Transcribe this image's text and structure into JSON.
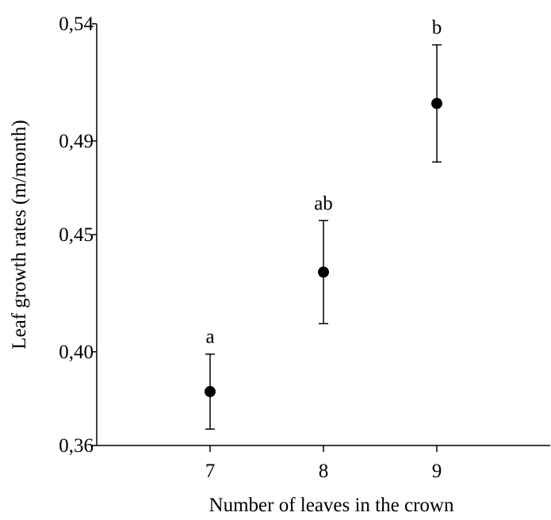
{
  "chart_data": {
    "type": "scatter",
    "x_label": "Number of leaves in the crown",
    "y_label": "Leaf growth rates (m/month)",
    "x": [
      7,
      8,
      9
    ],
    "values": [
      0.383,
      0.434,
      0.506
    ],
    "errors": [
      0.016,
      0.022,
      0.025
    ],
    "point_labels": [
      "a",
      "ab",
      "b"
    ],
    "color": "#000000",
    "xlim": [
      6,
      10
    ],
    "xticks": [
      7,
      8,
      9
    ],
    "ylim": [
      0.36,
      0.54
    ],
    "yticks": [
      {
        "value": 0.36,
        "label": "0,36"
      },
      {
        "value": 0.4,
        "label": "0,40"
      },
      {
        "value": 0.45,
        "label": "0,45"
      },
      {
        "value": 0.49,
        "label": "0,49"
      },
      {
        "value": 0.54,
        "label": "0,54"
      }
    ],
    "grid": false
  }
}
